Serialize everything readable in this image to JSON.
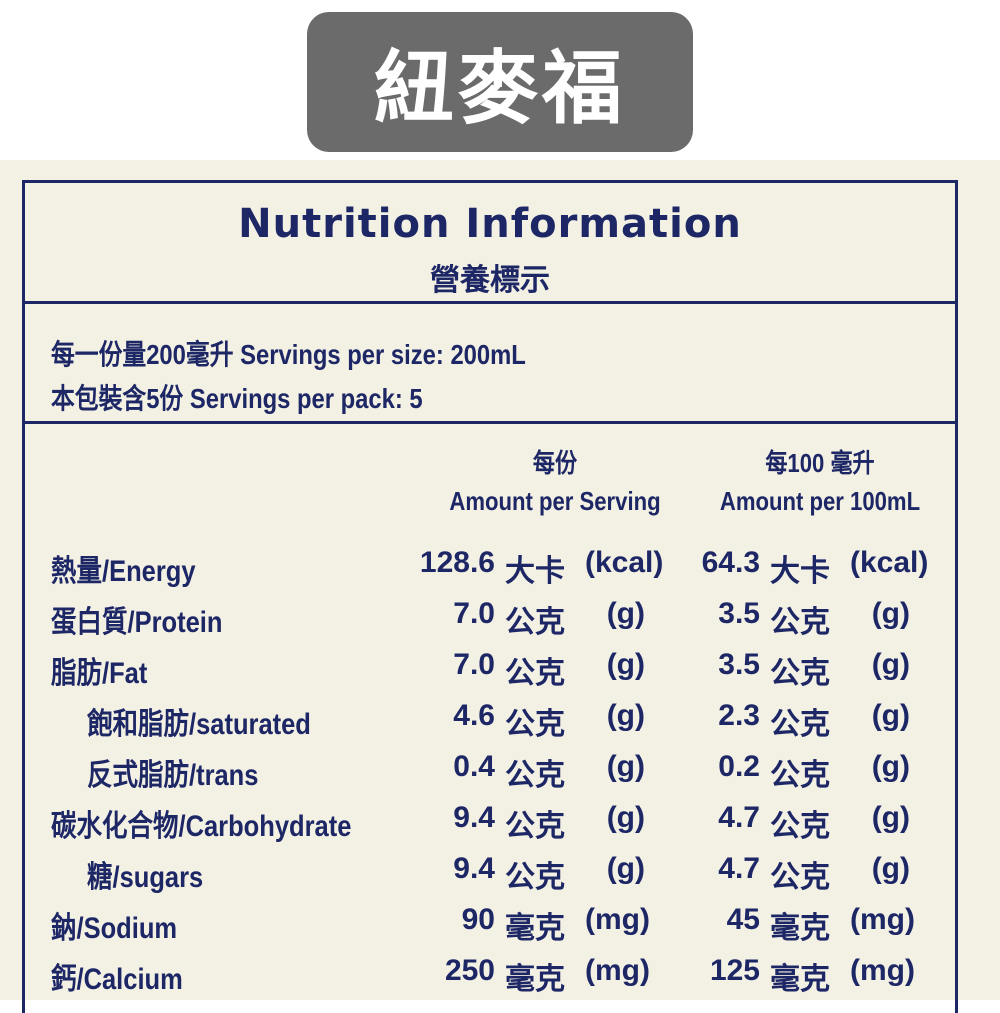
{
  "brand": "紐麥福",
  "label": {
    "title": "Nutrition Information",
    "subtitle": "營養標示",
    "serving_size": "每一份量200毫升  Servings per size: 200mL",
    "servings_per_pack": "本包裝含5份  Servings per pack: 5",
    "columns": [
      {
        "zh": "每份",
        "en": "Amount per Serving"
      },
      {
        "zh": "每100 毫升",
        "en": "Amount per 100mL"
      }
    ],
    "rows": [
      {
        "label": "熱量/Energy",
        "indent": false,
        "per_serving": {
          "num": "128.6",
          "uz": "大卡",
          "ue": "(kcal)"
        },
        "per_100": {
          "num": "64.3",
          "uz": "大卡",
          "ue": "(kcal)"
        }
      },
      {
        "label": "蛋白質/Protein",
        "indent": false,
        "per_serving": {
          "num": "7.0",
          "uz": "公克",
          "ue": "(g)"
        },
        "per_100": {
          "num": "3.5",
          "uz": "公克",
          "ue": "(g)"
        }
      },
      {
        "label": "脂肪/Fat",
        "indent": false,
        "per_serving": {
          "num": "7.0",
          "uz": "公克",
          "ue": "(g)"
        },
        "per_100": {
          "num": "3.5",
          "uz": "公克",
          "ue": "(g)"
        }
      },
      {
        "label": "飽和脂肪/saturated",
        "indent": true,
        "per_serving": {
          "num": "4.6",
          "uz": "公克",
          "ue": "(g)"
        },
        "per_100": {
          "num": "2.3",
          "uz": "公克",
          "ue": "(g)"
        }
      },
      {
        "label": "反式脂肪/trans",
        "indent": true,
        "per_serving": {
          "num": "0.4",
          "uz": "公克",
          "ue": "(g)"
        },
        "per_100": {
          "num": "0.2",
          "uz": "公克",
          "ue": "(g)"
        }
      },
      {
        "label": "碳水化合物/Carbohydrate",
        "indent": false,
        "per_serving": {
          "num": "9.4",
          "uz": "公克",
          "ue": "(g)"
        },
        "per_100": {
          "num": "4.7",
          "uz": "公克",
          "ue": "(g)"
        }
      },
      {
        "label": "糖/sugars",
        "indent": true,
        "per_serving": {
          "num": "9.4",
          "uz": "公克",
          "ue": "(g)"
        },
        "per_100": {
          "num": "4.7",
          "uz": "公克",
          "ue": "(g)"
        }
      },
      {
        "label": "鈉/Sodium",
        "indent": false,
        "per_serving": {
          "num": "90",
          "uz": "毫克",
          "ue": "(mg)"
        },
        "per_100": {
          "num": "45",
          "uz": "毫克",
          "ue": "(mg)"
        }
      },
      {
        "label": "鈣/Calcium",
        "indent": false,
        "per_serving": {
          "num": "250",
          "uz": "毫克",
          "ue": "(mg)"
        },
        "per_100": {
          "num": "125",
          "uz": "毫克",
          "ue": "(mg)"
        }
      }
    ]
  }
}
